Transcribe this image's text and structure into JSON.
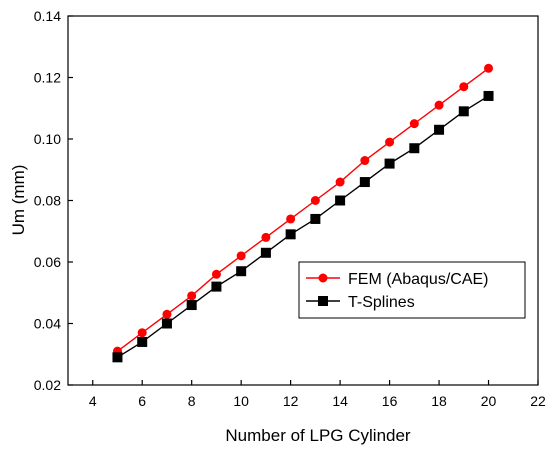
{
  "chart_data": {
    "type": "line",
    "xlabel": "Number of LPG Cylinder",
    "ylabel": "Um (mm)",
    "xlim": [
      3,
      22
    ],
    "ylim": [
      0.02,
      0.14
    ],
    "x_ticks": [
      4,
      6,
      8,
      10,
      12,
      14,
      16,
      18,
      20,
      22
    ],
    "y_ticks": [
      0.02,
      0.04,
      0.06,
      0.08,
      0.1,
      0.12,
      0.14
    ],
    "x_tick_labels": [
      "4",
      "6",
      "8",
      "10",
      "12",
      "14",
      "16",
      "18",
      "20",
      "22"
    ],
    "y_tick_labels": [
      "0.02",
      "0.04",
      "0.06",
      "0.08",
      "0.10",
      "0.12",
      "0.14"
    ],
    "grid": false,
    "legend_position": "lower-right",
    "x": [
      5,
      6,
      7,
      8,
      9,
      10,
      11,
      12,
      13,
      14,
      15,
      16,
      17,
      18,
      19,
      20
    ],
    "series": [
      {
        "name": "FEM (Abaqus/CAE)",
        "color": "#ff0000",
        "marker": "circle",
        "values": [
          0.031,
          0.037,
          0.043,
          0.049,
          0.056,
          0.062,
          0.068,
          0.074,
          0.08,
          0.086,
          0.093,
          0.099,
          0.105,
          0.111,
          0.117,
          0.123
        ]
      },
      {
        "name": "T-Splines",
        "color": "#000000",
        "marker": "square",
        "values": [
          0.029,
          0.034,
          0.04,
          0.046,
          0.052,
          0.057,
          0.063,
          0.069,
          0.074,
          0.08,
          0.086,
          0.092,
          0.097,
          0.103,
          0.109,
          0.114
        ]
      }
    ]
  }
}
